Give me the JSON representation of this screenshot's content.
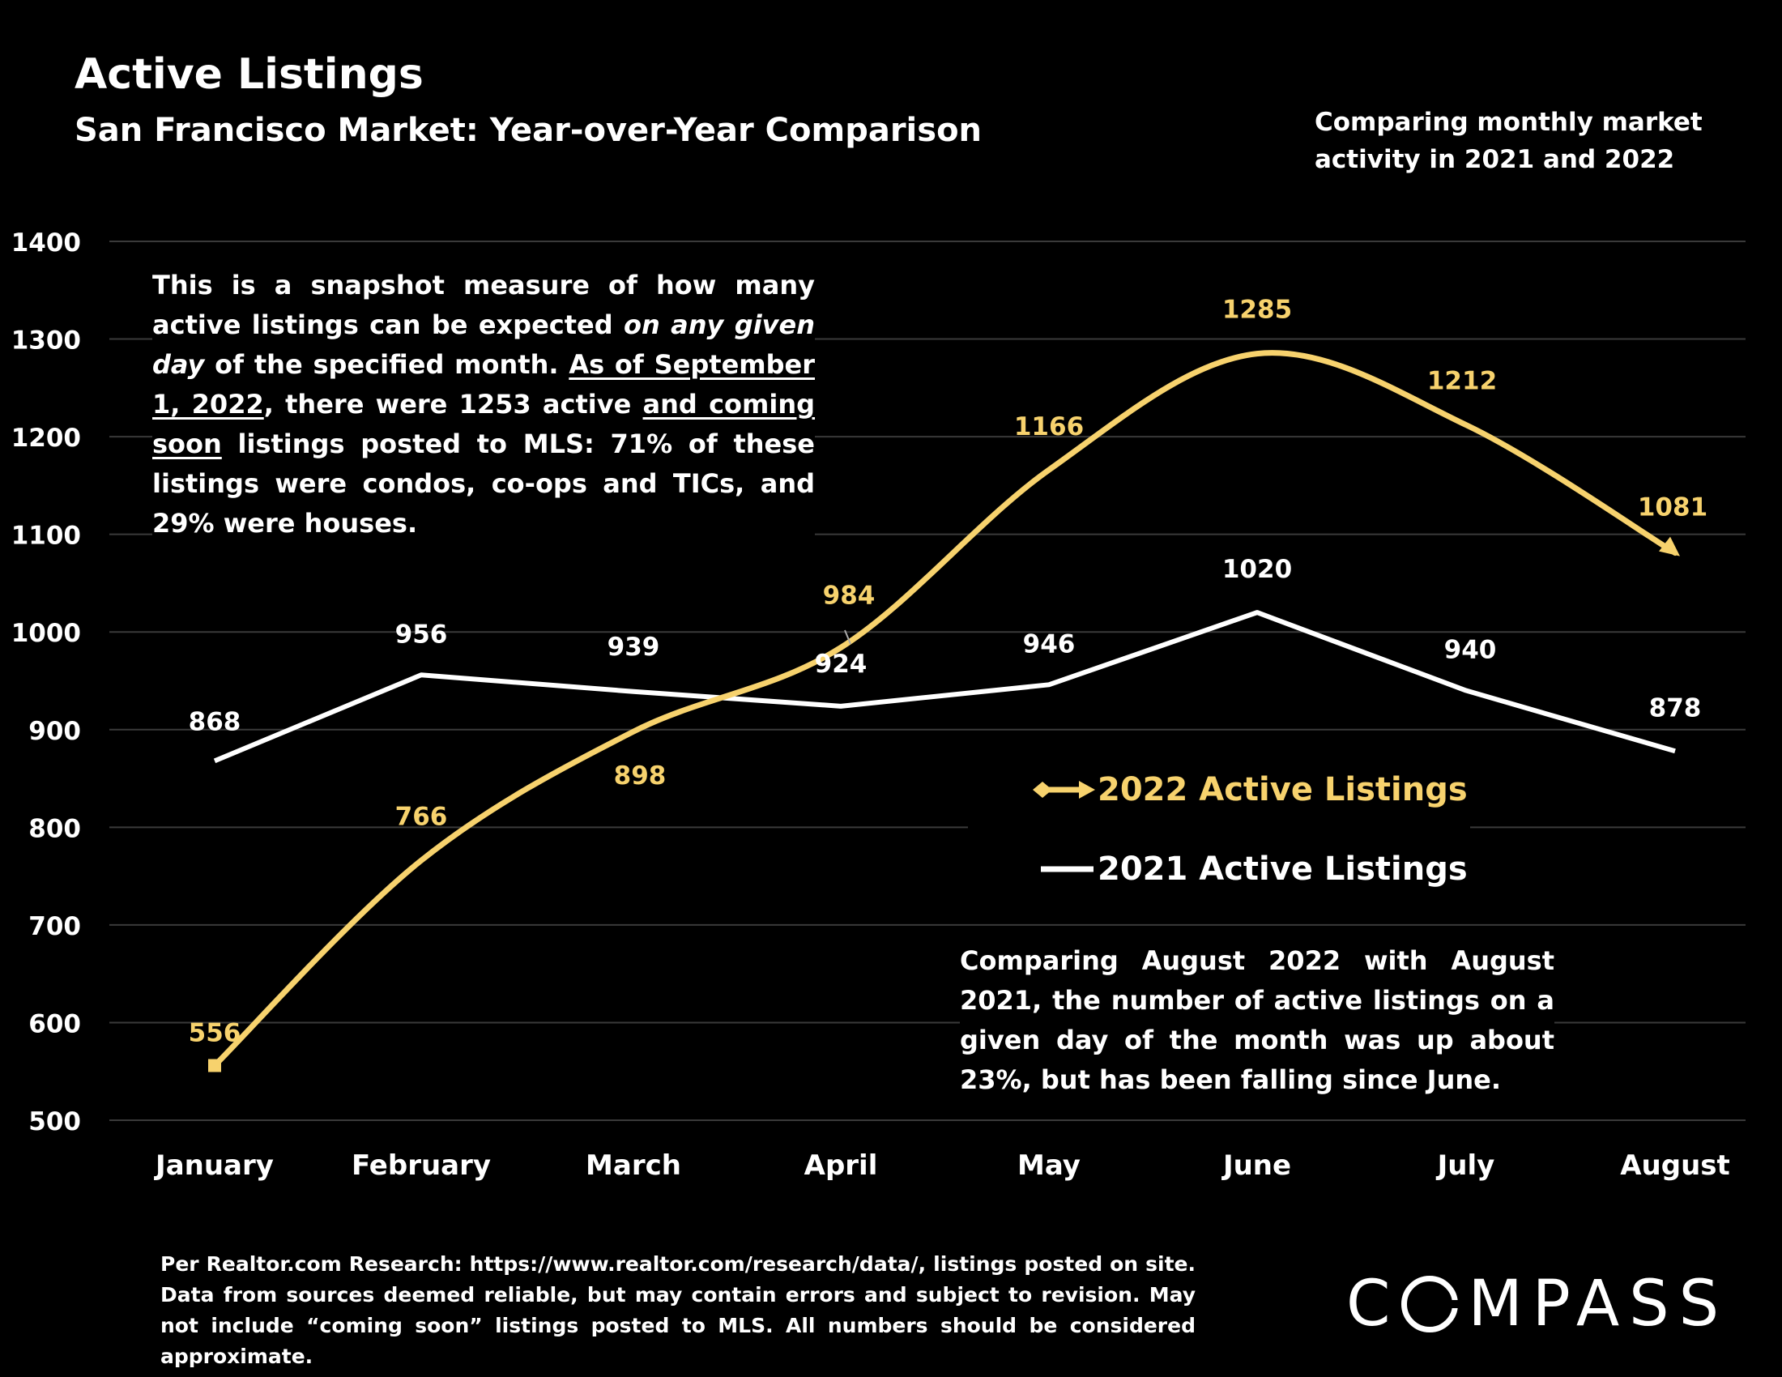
{
  "header": {
    "title": "Active Listings",
    "subtitle": "San Francisco Market: Year-over-Year Comparison",
    "top_note_line1": "Comparing monthly market",
    "top_note_line2": "activity in 2021 and 2022"
  },
  "notes": {
    "left_part1": "This is a snapshot measure of how many active listings can be expected ",
    "left_italic": "on any given day",
    "left_part2": " of the specified month. ",
    "left_underline1": "As of September 1, 2022",
    "left_part3": ", there were 1253 active ",
    "left_underline2": "and coming soon",
    "left_part4": " listings posted to MLS: 71% of these listings were condos, co-ops and TICs, and 29% were houses.",
    "right": "Comparing August 2022 with August 2021, the number of active listings on a given day of the month was up about 23%, but has been falling since June."
  },
  "footer": {
    "source": "Per Realtor.com Research:  https://www.realtor.com/research/data/, listings posted on site. Data from sources deemed reliable, but may contain errors and subject to revision. May not include “coming soon” listings posted to MLS. All numbers should be considered approximate.",
    "logo_c": "C",
    "logo_rest": "MPASS"
  },
  "colors": {
    "background": "#000000",
    "series_2022": "#f7d26d",
    "series_2021": "#ffffff",
    "gridline": "#3a3a3a"
  },
  "chart_data": {
    "type": "line",
    "categories": [
      "January",
      "February",
      "March",
      "April",
      "May",
      "June",
      "July",
      "August"
    ],
    "series": [
      {
        "name": "2022 Active Listings",
        "color": "#f7d26d",
        "values": [
          556,
          766,
          898,
          984,
          1166,
          1285,
          1212,
          1081
        ]
      },
      {
        "name": "2021 Active Listings",
        "color": "#ffffff",
        "values": [
          868,
          956,
          939,
          924,
          946,
          1020,
          940,
          878
        ]
      }
    ],
    "ylim": [
      500,
      1400
    ],
    "yticks": [
      500,
      600,
      700,
      800,
      900,
      1000,
      1100,
      1200,
      1300,
      1400
    ],
    "grid": true,
    "legend_position": "right-middle",
    "smooth": true
  }
}
